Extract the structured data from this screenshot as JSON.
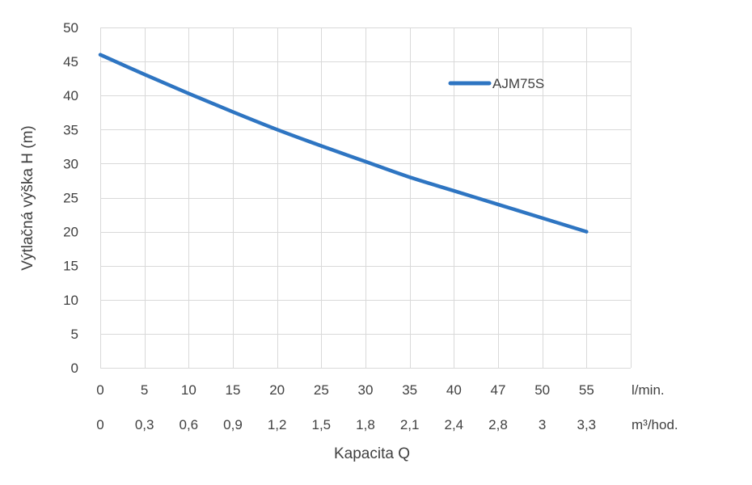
{
  "chart_data": {
    "type": "line",
    "ylabel": "Výtlačná výška H (m)",
    "xlabel": "Kapacita Q",
    "ylim": [
      0,
      50
    ],
    "y_ticks": [
      "0",
      "5",
      "10",
      "15",
      "20",
      "25",
      "30",
      "35",
      "40",
      "45",
      "50"
    ],
    "x_lmin_ticks": [
      "0",
      "5",
      "10",
      "15",
      "20",
      "25",
      "30",
      "35",
      "40",
      "47",
      "50",
      "55"
    ],
    "x_lmin_unit": "l/min.",
    "x_m3h_ticks": [
      "0",
      "0,3",
      "0,6",
      "0,9",
      "1,2",
      "1,5",
      "1,8",
      "2,1",
      "2,4",
      "2,8",
      "3",
      "3,3"
    ],
    "x_m3h_unit": "m³/hod.",
    "grid": true,
    "legend_position": "top-right",
    "series": [
      {
        "name": "AJM75S",
        "color": "#2e75c2",
        "x": [
          0,
          5,
          10,
          15,
          20,
          25,
          30,
          35,
          40,
          45,
          50,
          55
        ],
        "y": [
          46,
          43.1,
          40.3,
          37.6,
          35,
          32.6,
          30.3,
          28,
          26,
          24,
          22,
          20
        ]
      }
    ]
  }
}
